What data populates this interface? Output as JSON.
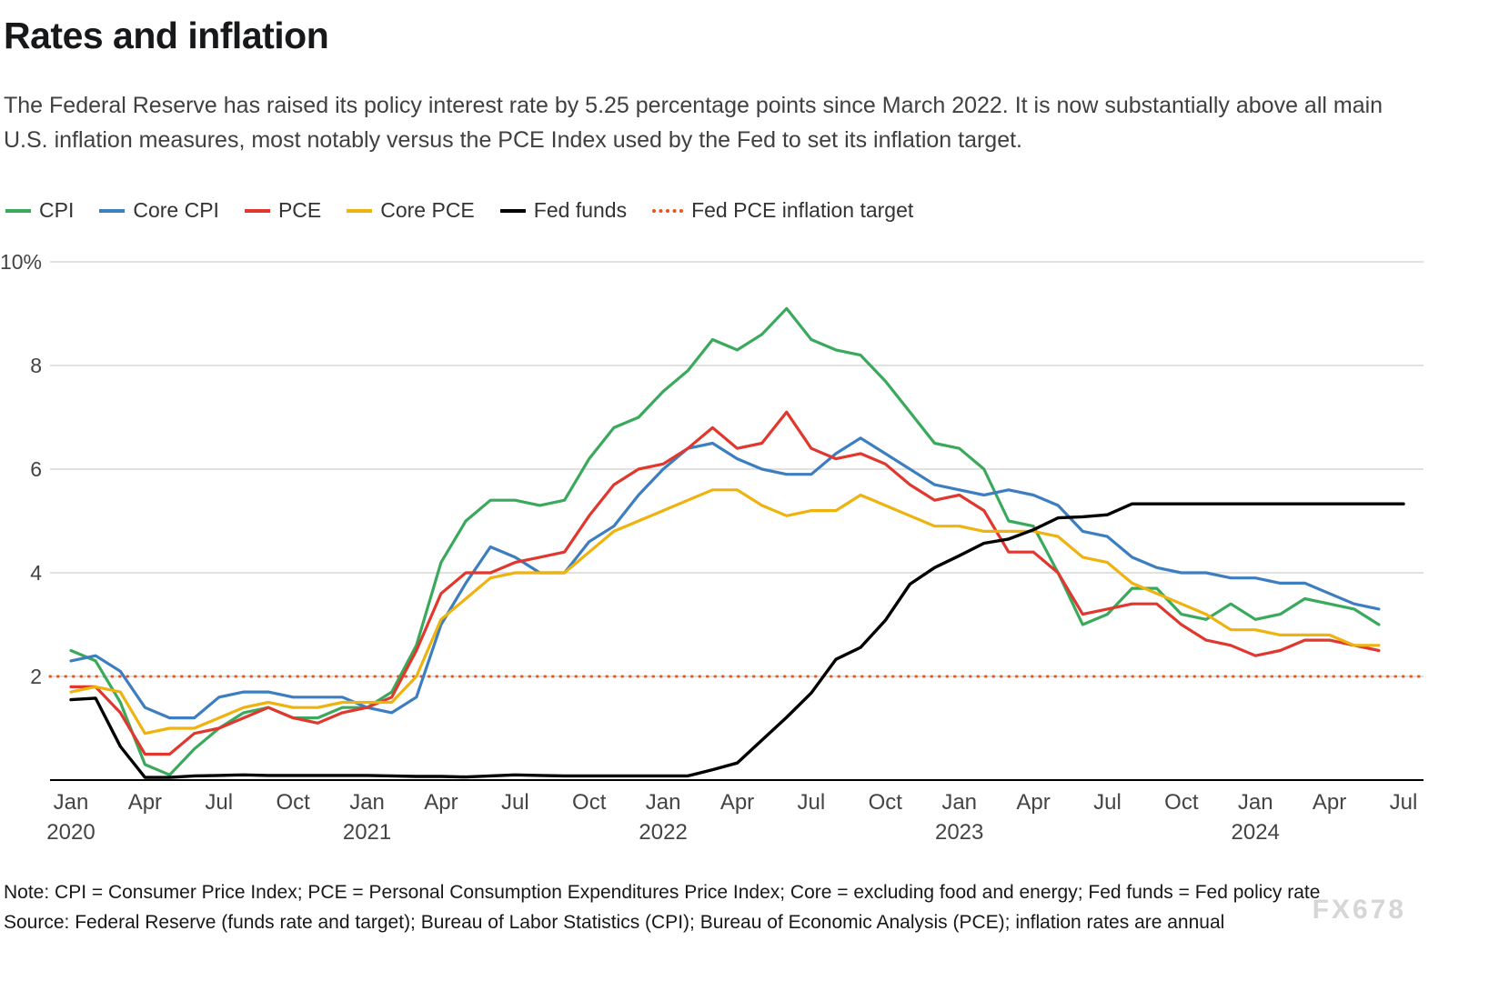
{
  "header": {
    "title": "Rates and inflation",
    "subtitle": "The Federal Reserve has raised its policy interest rate by 5.25 percentage points since March 2022. It is now substantially above all main U.S. inflation measures, most notably versus the PCE Index used by the Fed to set its inflation target."
  },
  "footer": {
    "note": "Note: CPI = Consumer Price Index; PCE = Personal Consumption Expenditures Price Index; Core = excluding food and energy; Fed funds = Fed policy rate",
    "source": "Source: Federal Reserve (funds rate and target); Bureau of Labor Statistics (CPI); Bureau of Economic Analysis (PCE); inflation rates are annual",
    "watermark": "FX678"
  },
  "chart_data": {
    "type": "line",
    "x_start": "2020-01",
    "x_end": "2024-07",
    "months": 55,
    "ylim": [
      0,
      10
    ],
    "grid": "horizontal",
    "legend_position": "top-left",
    "y_ticks": [
      {
        "v": 2,
        "label": "2"
      },
      {
        "v": 4,
        "label": "4"
      },
      {
        "v": 6,
        "label": "6"
      },
      {
        "v": 8,
        "label": "8"
      },
      {
        "v": 10,
        "label": "10%"
      }
    ],
    "x_ticks": [
      {
        "i": 0,
        "label": "Jan",
        "year": "2020"
      },
      {
        "i": 3,
        "label": "Apr"
      },
      {
        "i": 6,
        "label": "Jul"
      },
      {
        "i": 9,
        "label": "Oct"
      },
      {
        "i": 12,
        "label": "Jan",
        "year": "2021"
      },
      {
        "i": 15,
        "label": "Apr"
      },
      {
        "i": 18,
        "label": "Jul"
      },
      {
        "i": 21,
        "label": "Oct"
      },
      {
        "i": 24,
        "label": "Jan",
        "year": "2022"
      },
      {
        "i": 27,
        "label": "Apr"
      },
      {
        "i": 30,
        "label": "Jul"
      },
      {
        "i": 33,
        "label": "Oct"
      },
      {
        "i": 36,
        "label": "Jan",
        "year": "2023"
      },
      {
        "i": 39,
        "label": "Apr"
      },
      {
        "i": 42,
        "label": "Jul"
      },
      {
        "i": 45,
        "label": "Oct"
      },
      {
        "i": 48,
        "label": "Jan",
        "year": "2024"
      },
      {
        "i": 51,
        "label": "Apr"
      },
      {
        "i": 54,
        "label": "Jul"
      }
    ],
    "series": [
      {
        "name": "CPI",
        "color": "#3aa95c",
        "values": [
          2.5,
          2.3,
          1.5,
          0.3,
          0.1,
          0.6,
          1.0,
          1.3,
          1.4,
          1.2,
          1.2,
          1.4,
          1.4,
          1.7,
          2.6,
          4.2,
          5.0,
          5.4,
          5.4,
          5.3,
          5.4,
          6.2,
          6.8,
          7.0,
          7.5,
          7.9,
          8.5,
          8.3,
          8.6,
          9.1,
          8.5,
          8.3,
          8.2,
          7.7,
          7.1,
          6.5,
          6.4,
          6.0,
          5.0,
          4.9,
          4.0,
          3.0,
          3.2,
          3.7,
          3.7,
          3.2,
          3.1,
          3.4,
          3.1,
          3.2,
          3.5,
          3.4,
          3.3,
          3.0
        ]
      },
      {
        "name": "Core CPI",
        "color": "#3c7ebf",
        "values": [
          2.3,
          2.4,
          2.1,
          1.4,
          1.2,
          1.2,
          1.6,
          1.7,
          1.7,
          1.6,
          1.6,
          1.6,
          1.4,
          1.3,
          1.6,
          3.0,
          3.8,
          4.5,
          4.3,
          4.0,
          4.0,
          4.6,
          4.9,
          5.5,
          6.0,
          6.4,
          6.5,
          6.2,
          6.0,
          5.9,
          5.9,
          6.3,
          6.6,
          6.3,
          6.0,
          5.7,
          5.6,
          5.5,
          5.6,
          5.5,
          5.3,
          4.8,
          4.7,
          4.3,
          4.1,
          4.0,
          4.0,
          3.9,
          3.9,
          3.8,
          3.8,
          3.6,
          3.4,
          3.3
        ]
      },
      {
        "name": "PCE",
        "color": "#e0372e",
        "values": [
          1.8,
          1.8,
          1.3,
          0.5,
          0.5,
          0.9,
          1.0,
          1.2,
          1.4,
          1.2,
          1.1,
          1.3,
          1.4,
          1.6,
          2.5,
          3.6,
          4.0,
          4.0,
          4.2,
          4.3,
          4.4,
          5.1,
          5.7,
          6.0,
          6.1,
          6.4,
          6.8,
          6.4,
          6.5,
          7.1,
          6.4,
          6.2,
          6.3,
          6.1,
          5.7,
          5.4,
          5.5,
          5.2,
          4.4,
          4.4,
          4.0,
          3.2,
          3.3,
          3.4,
          3.4,
          3.0,
          2.7,
          2.6,
          2.4,
          2.5,
          2.7,
          2.7,
          2.6,
          2.5
        ]
      },
      {
        "name": "Core PCE",
        "color": "#efb310",
        "values": [
          1.7,
          1.8,
          1.7,
          0.9,
          1.0,
          1.0,
          1.2,
          1.4,
          1.5,
          1.4,
          1.4,
          1.5,
          1.5,
          1.5,
          2.0,
          3.1,
          3.5,
          3.9,
          4.0,
          4.0,
          4.0,
          4.4,
          4.8,
          5.0,
          5.2,
          5.4,
          5.6,
          5.6,
          5.3,
          5.1,
          5.2,
          5.2,
          5.5,
          5.3,
          5.1,
          4.9,
          4.9,
          4.8,
          4.8,
          4.8,
          4.7,
          4.3,
          4.2,
          3.8,
          3.6,
          3.4,
          3.2,
          2.9,
          2.9,
          2.8,
          2.8,
          2.8,
          2.6,
          2.6
        ]
      },
      {
        "name": "Fed funds",
        "color": "#000000",
        "values": [
          1.55,
          1.58,
          0.65,
          0.05,
          0.05,
          0.08,
          0.09,
          0.1,
          0.09,
          0.09,
          0.09,
          0.09,
          0.09,
          0.08,
          0.07,
          0.07,
          0.06,
          0.08,
          0.1,
          0.09,
          0.08,
          0.08,
          0.08,
          0.08,
          0.08,
          0.08,
          0.2,
          0.33,
          0.77,
          1.21,
          1.68,
          2.33,
          2.56,
          3.08,
          3.78,
          4.1,
          4.33,
          4.57,
          4.65,
          4.83,
          5.06,
          5.08,
          5.12,
          5.33,
          5.33,
          5.33,
          5.33,
          5.33,
          5.33,
          5.33,
          5.33,
          5.33,
          5.33,
          5.33,
          5.33
        ]
      },
      {
        "name": "Fed PCE inflation target",
        "color": "#e8531a",
        "style": "dotted",
        "value": 2
      }
    ]
  }
}
